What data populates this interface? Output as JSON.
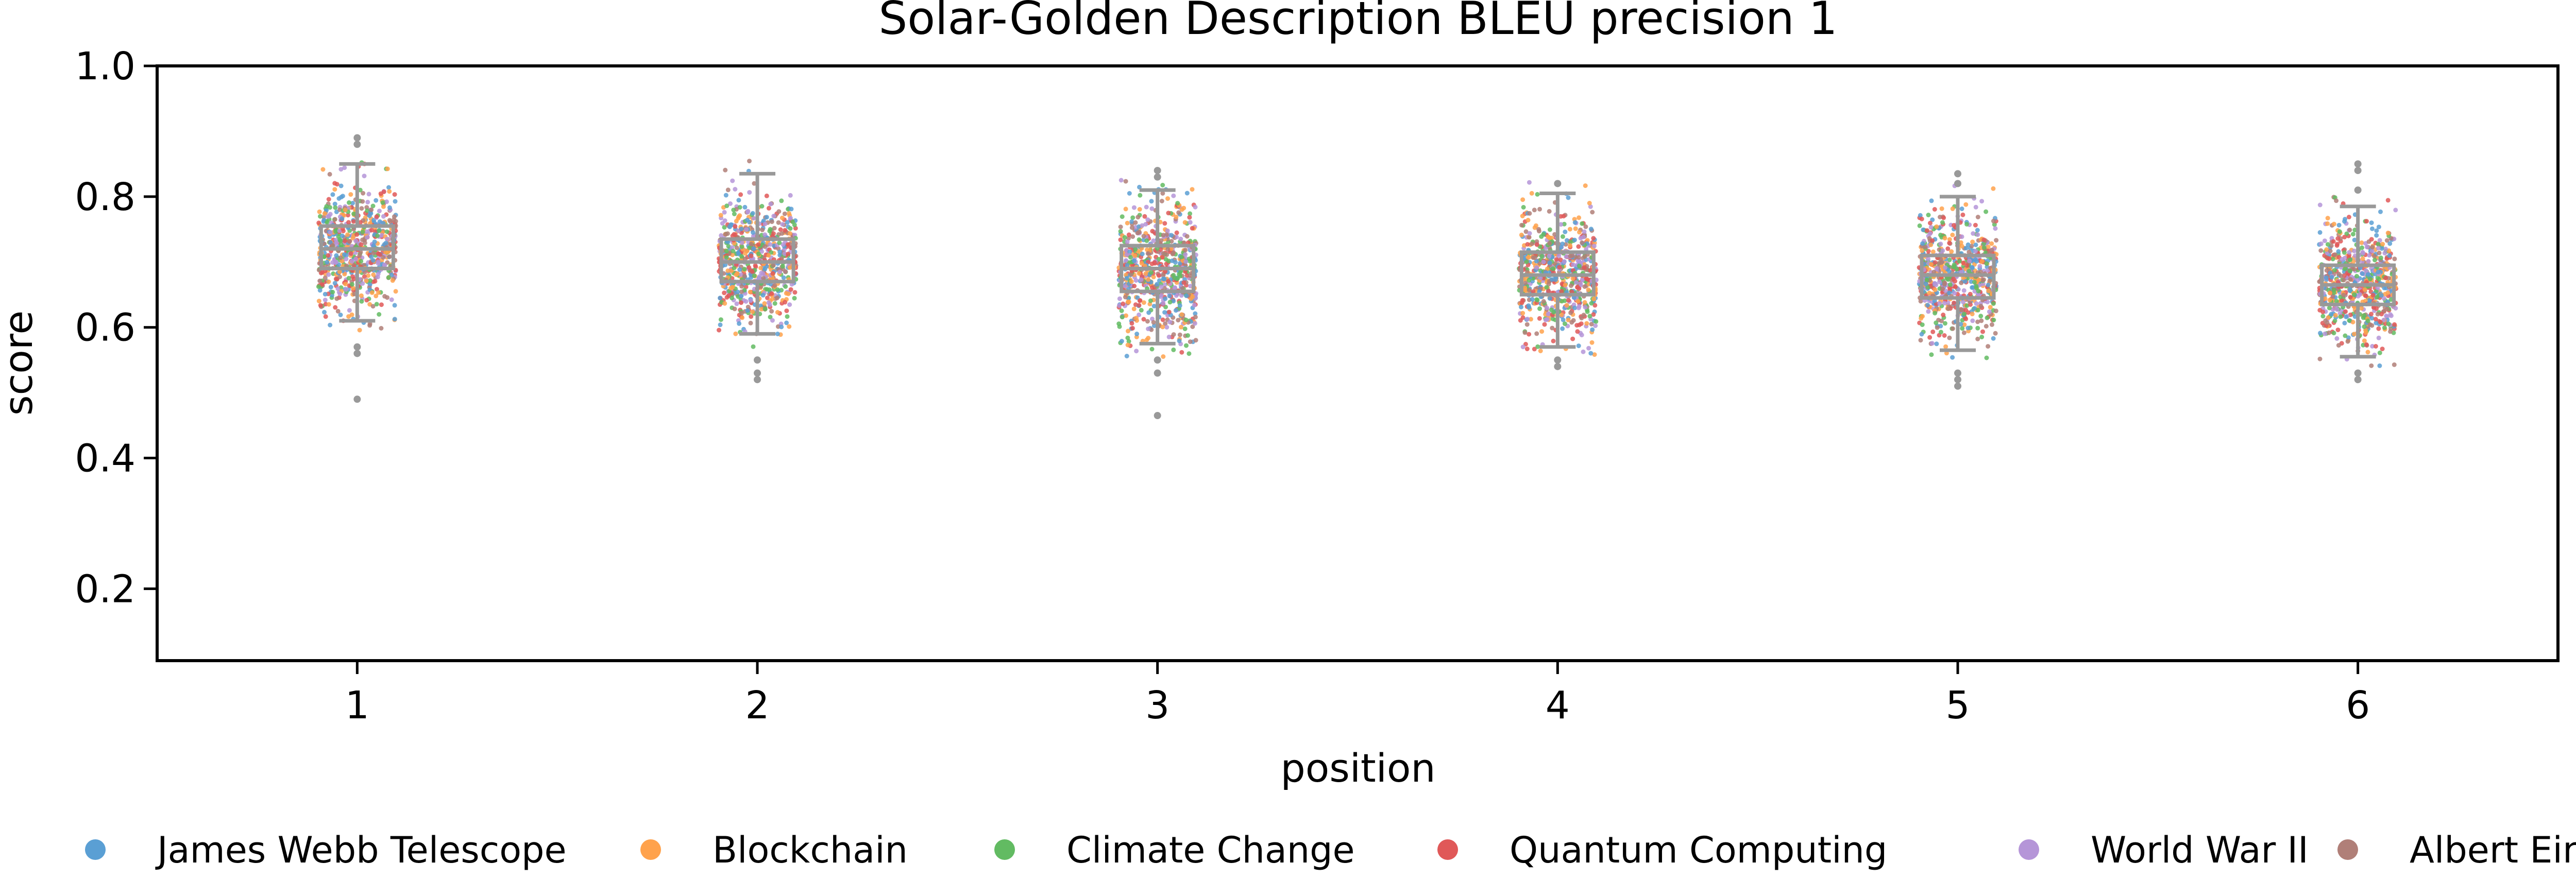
{
  "chart_data": {
    "type": "box",
    "title": "Solar-Golden Description BLEU precision 1",
    "xlabel": "position",
    "ylabel": "score",
    "ylim": [
      0.09,
      1.0
    ],
    "yticks": [
      "0.2",
      "0.4",
      "0.6",
      "0.8",
      "1.0"
    ],
    "categories": [
      "1",
      "2",
      "3",
      "4",
      "5",
      "6"
    ],
    "boxes": [
      {
        "whisker_low": 0.61,
        "q1": 0.69,
        "median": 0.72,
        "q3": 0.755,
        "whisker_high": 0.85,
        "fliers": [
          0.49,
          0.56,
          0.57,
          0.88,
          0.89
        ]
      },
      {
        "whisker_low": 0.59,
        "q1": 0.67,
        "median": 0.7,
        "q3": 0.735,
        "whisker_high": 0.835,
        "fliers": [
          0.52,
          0.53,
          0.55
        ]
      },
      {
        "whisker_low": 0.575,
        "q1": 0.655,
        "median": 0.69,
        "q3": 0.725,
        "whisker_high": 0.81,
        "fliers": [
          0.465,
          0.53,
          0.55,
          0.83,
          0.84
        ]
      },
      {
        "whisker_low": 0.57,
        "q1": 0.65,
        "median": 0.68,
        "q3": 0.715,
        "whisker_high": 0.805,
        "fliers": [
          0.54,
          0.55,
          0.82
        ]
      },
      {
        "whisker_low": 0.565,
        "q1": 0.645,
        "median": 0.68,
        "q3": 0.71,
        "whisker_high": 0.8,
        "fliers": [
          0.51,
          0.52,
          0.53,
          0.82,
          0.835
        ]
      },
      {
        "whisker_low": 0.555,
        "q1": 0.635,
        "median": 0.665,
        "q3": 0.695,
        "whisker_high": 0.785,
        "fliers": [
          0.52,
          0.53,
          0.81,
          0.84,
          0.85
        ]
      }
    ],
    "series": [
      {
        "name": "James Webb Telescope",
        "color": "#5a9fd4"
      },
      {
        "name": "Blockchain",
        "color": "#ffa24c"
      },
      {
        "name": "Climate Change",
        "color": "#62bb62"
      },
      {
        "name": "Quantum Computing",
        "color": "#e05858"
      },
      {
        "name": "World War II",
        "color": "#b595d8"
      },
      {
        "name": "Albert Einstein",
        "color": "#b07f78"
      }
    ],
    "box_color": "#999999",
    "grid": false,
    "legend_position": "bottom"
  }
}
